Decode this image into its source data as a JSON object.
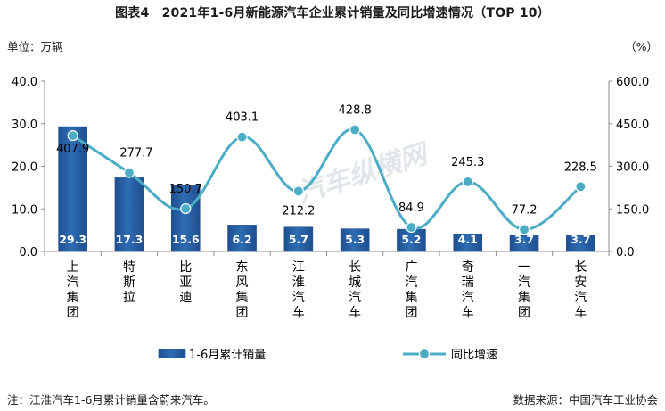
{
  "title": "图表4　2021年1-6月新能源汽车企业累计销量及同比增速情况（TOP 10）",
  "unit_left": "单位：万辆",
  "unit_right": "（%）",
  "note": "注：江淮汽车1-6月累计销量含蔚来汽车。",
  "source": "数据来源：中国汽车工业协会",
  "watermark": "汽车纵横网",
  "colors": {
    "bar": "#2e6db4",
    "bar_dark": "#1f4f8f",
    "line": "#4bacc6",
    "axis": "#8e8e8e"
  },
  "chart_data": {
    "type": "bar",
    "categories": [
      "上汽集团",
      "特斯拉",
      "比亚迪",
      "东风集团",
      "江淮汽车",
      "长城汽车",
      "广汽集团",
      "奇瑞汽车",
      "一汽集团",
      "长安汽车"
    ],
    "series": [
      {
        "name": "1-6月累计销量",
        "type": "bar",
        "axis": "left",
        "values": [
          29.3,
          17.3,
          15.6,
          6.2,
          5.7,
          5.3,
          5.2,
          4.1,
          3.7,
          3.7
        ]
      },
      {
        "name": "同比增速",
        "type": "line",
        "axis": "right",
        "values": [
          407.9,
          277.7,
          150.7,
          403.1,
          212.2,
          428.8,
          84.9,
          245.3,
          77.2,
          228.5
        ]
      }
    ],
    "ylim_left": [
      0,
      40
    ],
    "yticks_left": [
      "0.0",
      "10.0",
      "20.0",
      "30.0",
      "40.0"
    ],
    "ylim_right": [
      0,
      600
    ],
    "yticks_right": [
      "0.0",
      "150.0",
      "300.0",
      "450.0",
      "600.0"
    ],
    "legend_position": "bottom",
    "grid": false
  }
}
